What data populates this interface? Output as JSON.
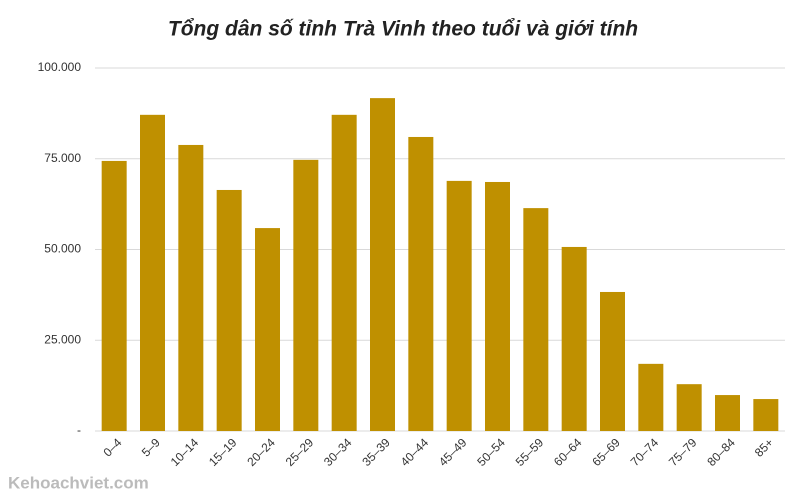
{
  "chart_data": {
    "type": "bar",
    "title": "Tổng dân số tỉnh Trà Vinh theo tuổi và giới tính",
    "categories": [
      "0–4",
      "5–9",
      "10–14",
      "15–19",
      "20–24",
      "25–29",
      "30–34",
      "35–39",
      "40–44",
      "45–49",
      "50–54",
      "55–59",
      "60–64",
      "65–69",
      "70–74",
      "75–79",
      "80–84",
      "85+"
    ],
    "values": [
      74400,
      87100,
      78800,
      66400,
      55900,
      74700,
      87100,
      91700,
      81000,
      68900,
      68600,
      61400,
      50700,
      38300,
      18500,
      12900,
      9900,
      8800
    ],
    "color": "#bf9000",
    "ylim": [
      0,
      100000
    ],
    "yticks": [
      {
        "value": 0,
        "label": "-"
      },
      {
        "value": 25000,
        "label": "25.000"
      },
      {
        "value": 50000,
        "label": "50.000"
      },
      {
        "value": 75000,
        "label": "75.000"
      },
      {
        "value": 100000,
        "label": "100.000"
      }
    ],
    "grid": true
  },
  "watermark": "Kehoachviet.com"
}
